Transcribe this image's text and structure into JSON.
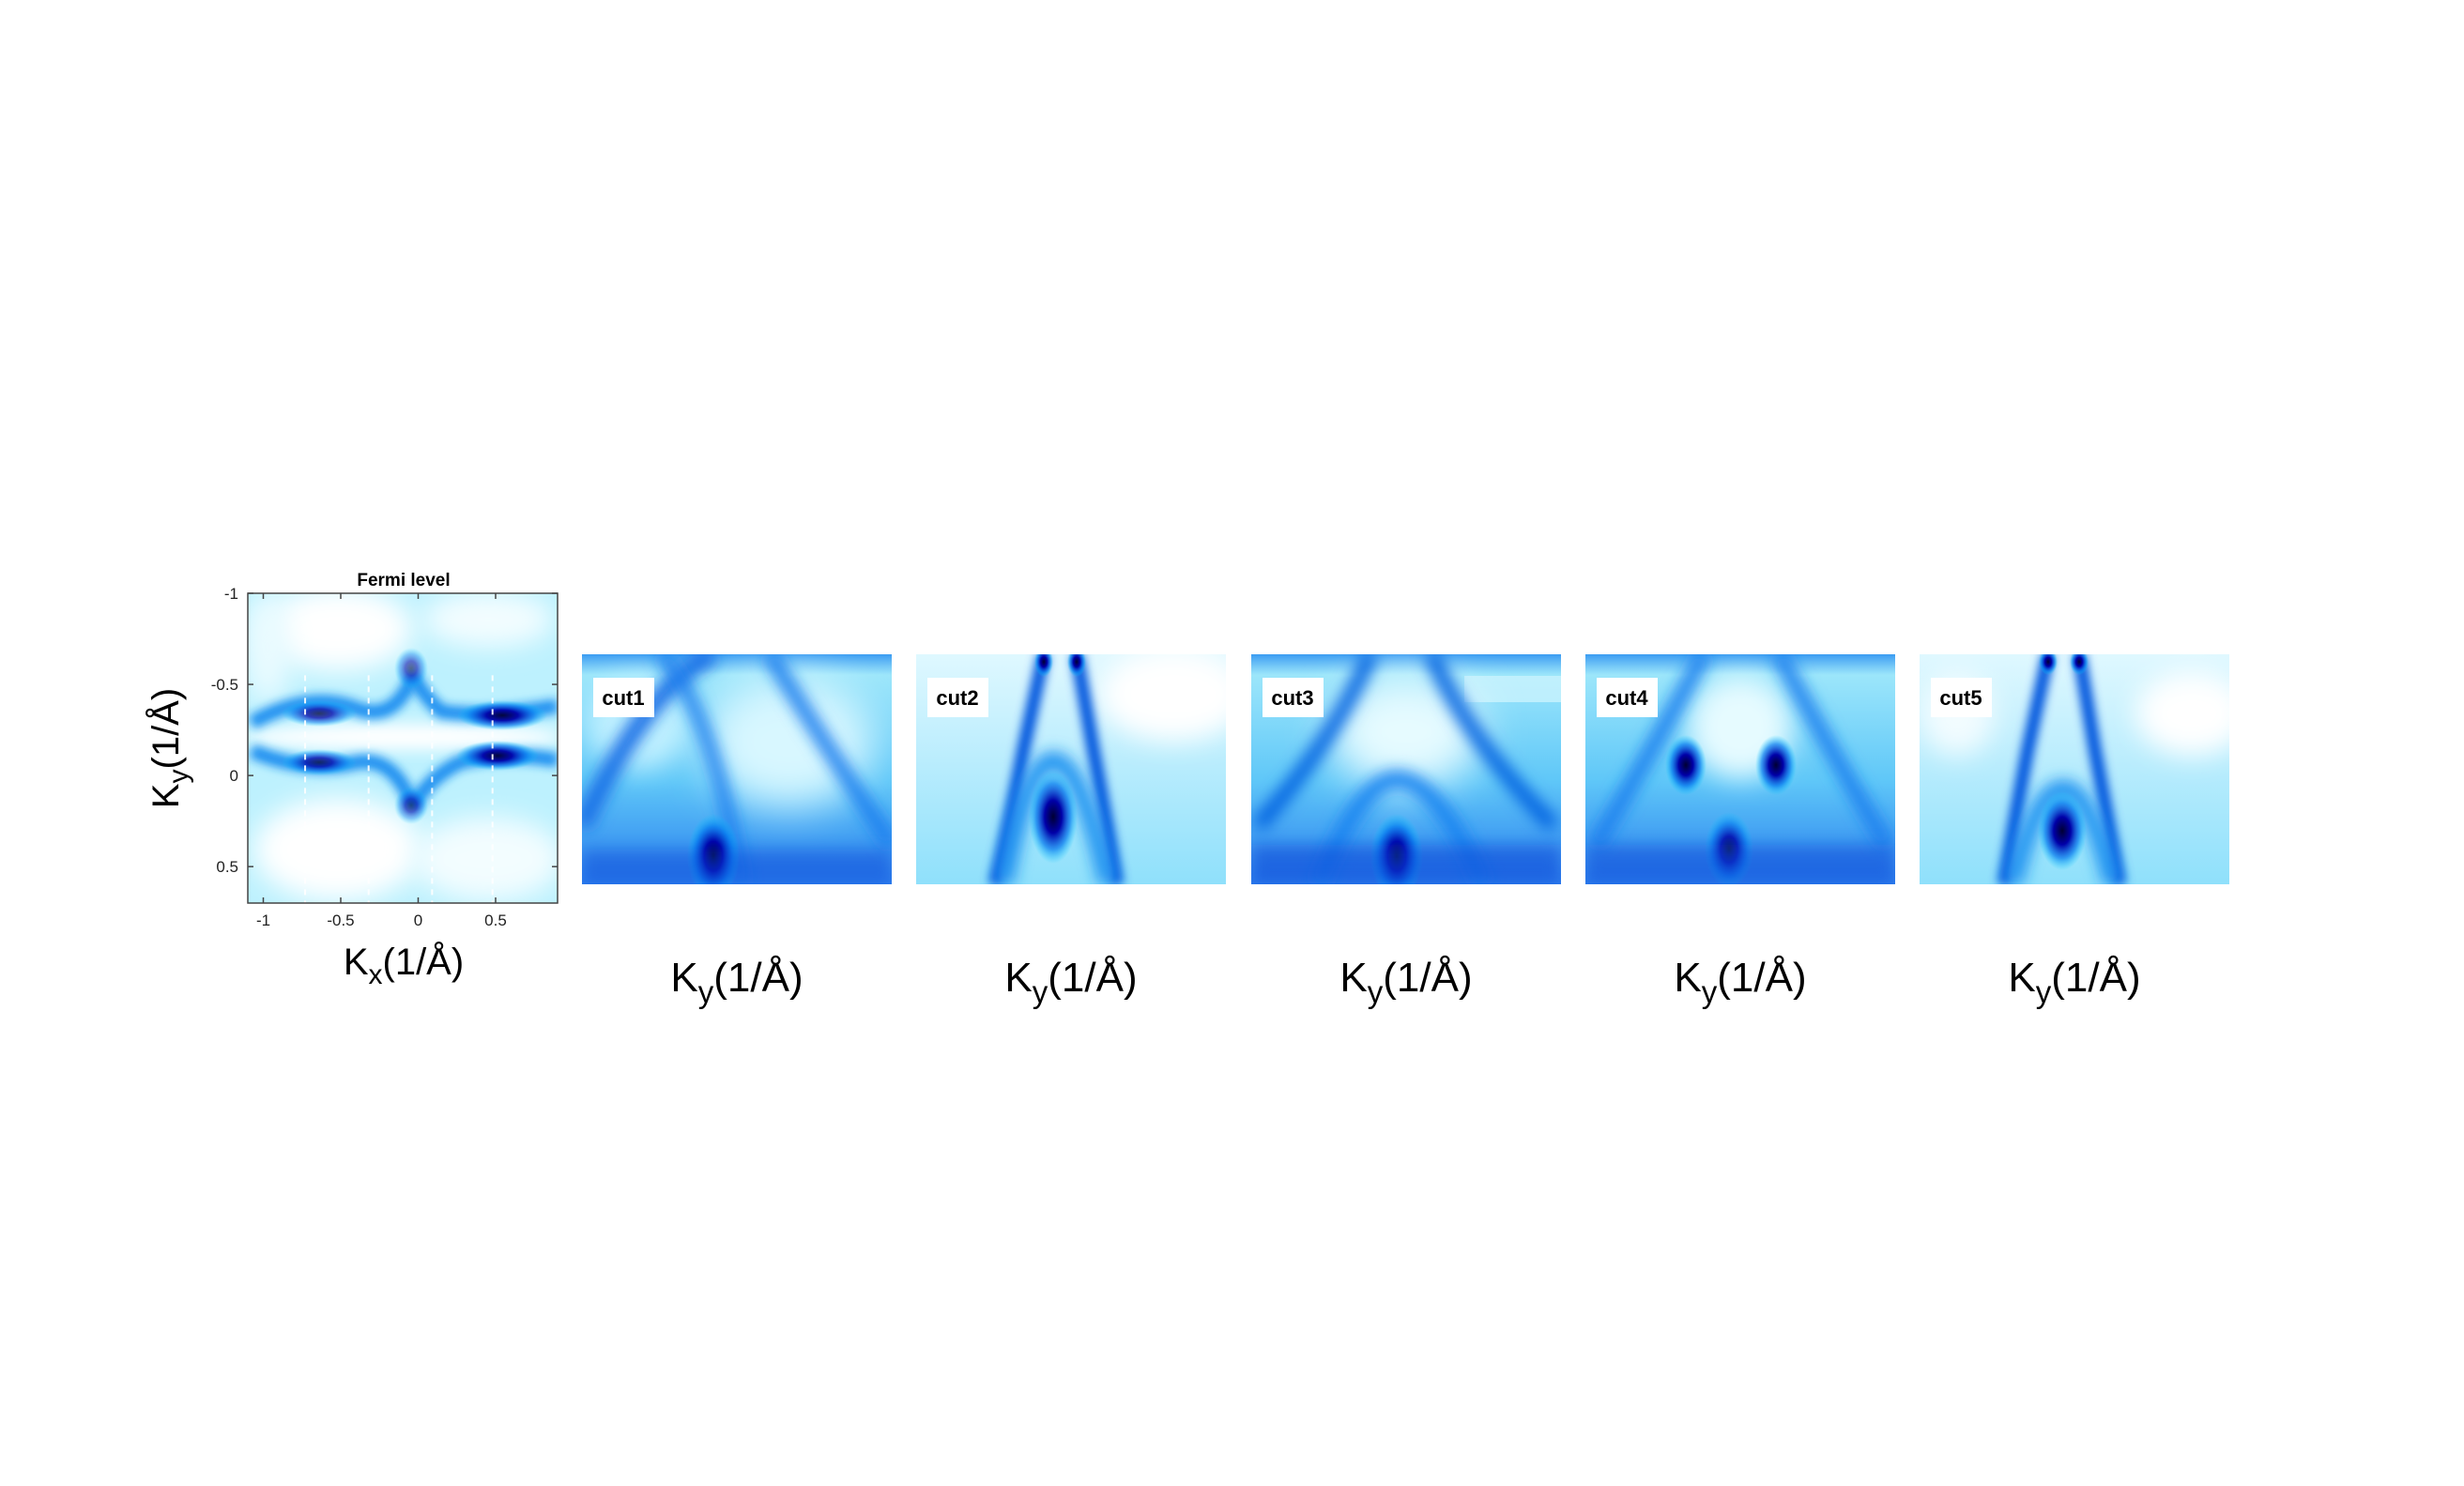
{
  "chart_data": [
    {
      "type": "heatmap",
      "title": "Fermi level",
      "xlabel_main": "K",
      "xlabel_sub": "x",
      "xlabel_unit": "(1/Å)",
      "ylabel_main": "K",
      "ylabel_sub": "y",
      "ylabel_unit": "(1/Å)",
      "xlim": [
        -1.1,
        0.9
      ],
      "ylim": [
        -1.0,
        0.7
      ],
      "y_reversed": true,
      "xticks": [
        -1,
        -0.5,
        0,
        0.5
      ],
      "xtick_labels": [
        "-1",
        "-0.5",
        "0",
        "0.5"
      ],
      "yticks": [
        -1,
        -0.5,
        0,
        0.5
      ],
      "ytick_labels": [
        "-1",
        "-0.5",
        "0",
        "0.5"
      ],
      "cut_lines_x": [
        -0.73,
        -0.32,
        0.09,
        0.48
      ],
      "colormap": [
        "#ffffff",
        "#00ccff",
        "#0000a0",
        "#000030"
      ],
      "features": [
        {
          "kx": -0.7,
          "ky": -0.35,
          "intensity": 0.6
        },
        {
          "kx": 0.45,
          "ky": -0.35,
          "intensity": 0.85
        },
        {
          "kx": -0.7,
          "ky": 0.08,
          "intensity": 0.6
        },
        {
          "kx": 0.45,
          "ky": 0.08,
          "intensity": 0.85
        },
        {
          "kx": -0.1,
          "ky": -0.6,
          "intensity": 0.5
        },
        {
          "kx": -0.1,
          "ky": 0.18,
          "intensity": 0.5
        }
      ]
    },
    {
      "type": "heatmap",
      "label": "cut1",
      "xlabel_main": "K",
      "xlabel_sub": "y",
      "xlabel_unit": "(1/Å)"
    },
    {
      "type": "heatmap",
      "label": "cut2",
      "xlabel_main": "K",
      "xlabel_sub": "y",
      "xlabel_unit": "(1/Å)"
    },
    {
      "type": "heatmap",
      "label": "cut3",
      "xlabel_main": "K",
      "xlabel_sub": "y",
      "xlabel_unit": "(1/Å)"
    },
    {
      "type": "heatmap",
      "label": "cut4",
      "xlabel_main": "K",
      "xlabel_sub": "y",
      "xlabel_unit": "(1/Å)"
    },
    {
      "type": "heatmap",
      "label": "cut5",
      "xlabel_main": "K",
      "xlabel_sub": "y",
      "xlabel_unit": "(1/Å)"
    }
  ]
}
